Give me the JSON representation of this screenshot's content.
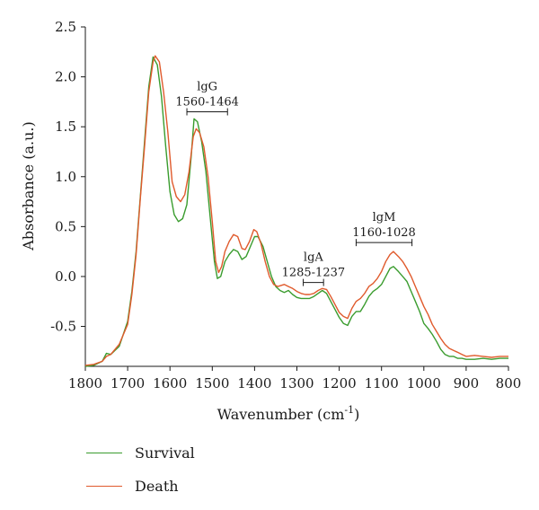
{
  "chart_data": {
    "type": "line",
    "title": "",
    "xlabel": "Wavenumber (cm",
    "xlabel_sup": "-1",
    "xlabel_close": ")",
    "ylabel": "Absorbance (a.u.)",
    "xlim": [
      1800,
      800
    ],
    "ylim": [
      -0.9,
      2.5
    ],
    "x_reversed": true,
    "x_ticks": [
      1800,
      1700,
      1600,
      1500,
      1400,
      1300,
      1200,
      1100,
      1000,
      900,
      800
    ],
    "y_ticks": [
      -0.5,
      0.0,
      0.5,
      1.0,
      1.5,
      2.0,
      2.5
    ],
    "y_tick_labels": [
      "-0.5",
      "0.0",
      "0.5",
      "1.0",
      "1.5",
      "2.0",
      "2.5"
    ],
    "grid": false,
    "legend_position": "bottom-left",
    "series": [
      {
        "name": "Survival",
        "color": "#3a9c2e",
        "points": [
          [
            1800,
            -0.9
          ],
          [
            1780,
            -0.89
          ],
          [
            1760,
            -0.85
          ],
          [
            1750,
            -0.77
          ],
          [
            1740,
            -0.78
          ],
          [
            1720,
            -0.7
          ],
          [
            1700,
            -0.45
          ],
          [
            1690,
            -0.15
          ],
          [
            1680,
            0.25
          ],
          [
            1670,
            0.8
          ],
          [
            1660,
            1.35
          ],
          [
            1650,
            1.9
          ],
          [
            1640,
            2.2
          ],
          [
            1630,
            2.12
          ],
          [
            1620,
            1.8
          ],
          [
            1610,
            1.3
          ],
          [
            1600,
            0.85
          ],
          [
            1590,
            0.62
          ],
          [
            1580,
            0.55
          ],
          [
            1570,
            0.58
          ],
          [
            1560,
            0.72
          ],
          [
            1550,
            1.2
          ],
          [
            1543,
            1.58
          ],
          [
            1535,
            1.55
          ],
          [
            1525,
            1.35
          ],
          [
            1515,
            1.05
          ],
          [
            1505,
            0.6
          ],
          [
            1495,
            0.15
          ],
          [
            1488,
            -0.02
          ],
          [
            1480,
            0.0
          ],
          [
            1470,
            0.15
          ],
          [
            1460,
            0.22
          ],
          [
            1450,
            0.27
          ],
          [
            1440,
            0.25
          ],
          [
            1430,
            0.17
          ],
          [
            1420,
            0.2
          ],
          [
            1410,
            0.3
          ],
          [
            1400,
            0.4
          ],
          [
            1392,
            0.4
          ],
          [
            1380,
            0.3
          ],
          [
            1370,
            0.15
          ],
          [
            1360,
            0.0
          ],
          [
            1350,
            -0.1
          ],
          [
            1340,
            -0.14
          ],
          [
            1330,
            -0.16
          ],
          [
            1320,
            -0.14
          ],
          [
            1310,
            -0.18
          ],
          [
            1300,
            -0.21
          ],
          [
            1290,
            -0.22
          ],
          [
            1280,
            -0.22
          ],
          [
            1270,
            -0.22
          ],
          [
            1260,
            -0.2
          ],
          [
            1250,
            -0.17
          ],
          [
            1240,
            -0.14
          ],
          [
            1230,
            -0.17
          ],
          [
            1220,
            -0.25
          ],
          [
            1210,
            -0.33
          ],
          [
            1200,
            -0.41
          ],
          [
            1190,
            -0.47
          ],
          [
            1180,
            -0.49
          ],
          [
            1170,
            -0.4
          ],
          [
            1160,
            -0.35
          ],
          [
            1150,
            -0.35
          ],
          [
            1140,
            -0.28
          ],
          [
            1130,
            -0.2
          ],
          [
            1120,
            -0.15
          ],
          [
            1110,
            -0.12
          ],
          [
            1100,
            -0.08
          ],
          [
            1090,
            0.0
          ],
          [
            1080,
            0.08
          ],
          [
            1072,
            0.1
          ],
          [
            1060,
            0.05
          ],
          [
            1050,
            0.0
          ],
          [
            1040,
            -0.05
          ],
          [
            1030,
            -0.15
          ],
          [
            1020,
            -0.25
          ],
          [
            1010,
            -0.35
          ],
          [
            1000,
            -0.47
          ],
          [
            990,
            -0.52
          ],
          [
            980,
            -0.58
          ],
          [
            970,
            -0.65
          ],
          [
            960,
            -0.73
          ],
          [
            950,
            -0.78
          ],
          [
            940,
            -0.8
          ],
          [
            930,
            -0.8
          ],
          [
            920,
            -0.82
          ],
          [
            910,
            -0.82
          ],
          [
            900,
            -0.83
          ],
          [
            880,
            -0.83
          ],
          [
            860,
            -0.82
          ],
          [
            840,
            -0.83
          ],
          [
            820,
            -0.82
          ],
          [
            800,
            -0.82
          ]
        ]
      },
      {
        "name": "Death",
        "color": "#e05a2c",
        "points": [
          [
            1800,
            -0.89
          ],
          [
            1780,
            -0.88
          ],
          [
            1760,
            -0.85
          ],
          [
            1750,
            -0.8
          ],
          [
            1740,
            -0.78
          ],
          [
            1720,
            -0.68
          ],
          [
            1700,
            -0.48
          ],
          [
            1690,
            -0.18
          ],
          [
            1680,
            0.22
          ],
          [
            1670,
            0.78
          ],
          [
            1660,
            1.3
          ],
          [
            1650,
            1.85
          ],
          [
            1640,
            2.15
          ],
          [
            1635,
            2.21
          ],
          [
            1625,
            2.15
          ],
          [
            1615,
            1.85
          ],
          [
            1605,
            1.45
          ],
          [
            1595,
            0.95
          ],
          [
            1585,
            0.8
          ],
          [
            1575,
            0.75
          ],
          [
            1565,
            0.82
          ],
          [
            1555,
            1.05
          ],
          [
            1545,
            1.4
          ],
          [
            1538,
            1.48
          ],
          [
            1530,
            1.44
          ],
          [
            1520,
            1.3
          ],
          [
            1510,
            1.0
          ],
          [
            1500,
            0.55
          ],
          [
            1492,
            0.15
          ],
          [
            1485,
            0.04
          ],
          [
            1478,
            0.1
          ],
          [
            1470,
            0.25
          ],
          [
            1460,
            0.35
          ],
          [
            1450,
            0.42
          ],
          [
            1440,
            0.4
          ],
          [
            1430,
            0.28
          ],
          [
            1422,
            0.27
          ],
          [
            1412,
            0.35
          ],
          [
            1402,
            0.47
          ],
          [
            1395,
            0.45
          ],
          [
            1385,
            0.33
          ],
          [
            1375,
            0.15
          ],
          [
            1365,
            0.0
          ],
          [
            1355,
            -0.08
          ],
          [
            1345,
            -0.1
          ],
          [
            1330,
            -0.08
          ],
          [
            1320,
            -0.1
          ],
          [
            1310,
            -0.12
          ],
          [
            1300,
            -0.15
          ],
          [
            1290,
            -0.17
          ],
          [
            1280,
            -0.18
          ],
          [
            1270,
            -0.18
          ],
          [
            1260,
            -0.17
          ],
          [
            1250,
            -0.14
          ],
          [
            1240,
            -0.12
          ],
          [
            1230,
            -0.13
          ],
          [
            1220,
            -0.2
          ],
          [
            1210,
            -0.28
          ],
          [
            1200,
            -0.36
          ],
          [
            1190,
            -0.4
          ],
          [
            1180,
            -0.42
          ],
          [
            1170,
            -0.32
          ],
          [
            1160,
            -0.25
          ],
          [
            1150,
            -0.22
          ],
          [
            1140,
            -0.17
          ],
          [
            1130,
            -0.1
          ],
          [
            1120,
            -0.07
          ],
          [
            1110,
            -0.02
          ],
          [
            1100,
            0.05
          ],
          [
            1090,
            0.15
          ],
          [
            1080,
            0.22
          ],
          [
            1072,
            0.25
          ],
          [
            1060,
            0.2
          ],
          [
            1050,
            0.15
          ],
          [
            1040,
            0.08
          ],
          [
            1030,
            0.0
          ],
          [
            1020,
            -0.1
          ],
          [
            1010,
            -0.2
          ],
          [
            1000,
            -0.3
          ],
          [
            990,
            -0.38
          ],
          [
            980,
            -0.48
          ],
          [
            970,
            -0.55
          ],
          [
            960,
            -0.62
          ],
          [
            950,
            -0.68
          ],
          [
            940,
            -0.72
          ],
          [
            930,
            -0.74
          ],
          [
            920,
            -0.76
          ],
          [
            910,
            -0.78
          ],
          [
            900,
            -0.8
          ],
          [
            880,
            -0.79
          ],
          [
            860,
            -0.8
          ],
          [
            840,
            -0.81
          ],
          [
            820,
            -0.8
          ],
          [
            800,
            -0.8
          ]
        ]
      }
    ],
    "annotations": [
      {
        "id": "igg",
        "label": "lgG",
        "range_label": "1560-1464",
        "range": [
          1560,
          1464
        ],
        "y": 1.65
      },
      {
        "id": "iga",
        "label": "lgA",
        "range_label": "1285-1237",
        "range": [
          1285,
          1237
        ],
        "y": -0.06
      },
      {
        "id": "igm",
        "label": "lgM",
        "range_label": "1160-1028",
        "range": [
          1160,
          1028
        ],
        "y": 0.34
      }
    ]
  },
  "legend": {
    "items": [
      {
        "label": "Survival",
        "color": "#3a9c2e"
      },
      {
        "label": "Death",
        "color": "#e05a2c"
      }
    ]
  }
}
